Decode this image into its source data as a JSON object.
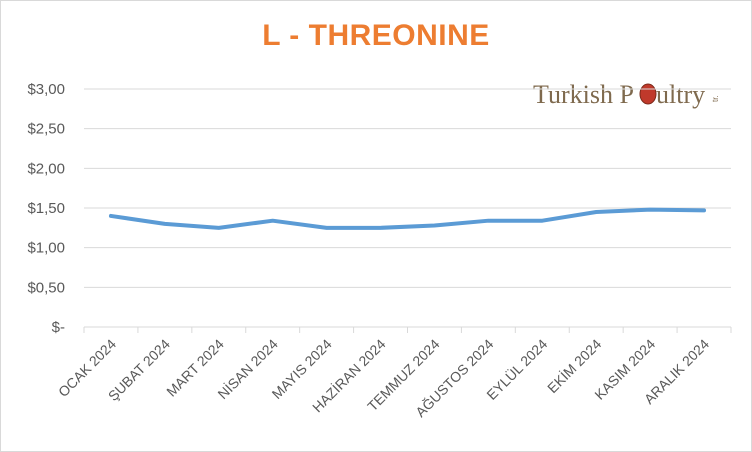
{
  "title": "L - THREONINE",
  "logo": {
    "text_main": "Turkish P",
    "text_tail": "ultry",
    "badge": "tr.",
    "icon": "egg-icon"
  },
  "colors": {
    "title": "#ed7d31",
    "line": "#5b9bd5",
    "grid": "#d9d9d9",
    "logo_text": "#7f6a4e",
    "logo_egg": "#c0392b"
  },
  "chart_data": {
    "type": "line",
    "categories": [
      "OCAK 2024",
      "ŞUBAT 2024",
      "MART 2024",
      "NİSAN 2024",
      "MAYIS 2024",
      "HAZİRAN 2024",
      "TEMMUZ 2024",
      "AĞUSTOS 2024",
      "EYLÜL 2024",
      "EKİM 2024",
      "KASIM 2024",
      "ARALIK 2024"
    ],
    "series": [
      {
        "values": [
          1.4,
          1.3,
          1.25,
          1.34,
          1.25,
          1.25,
          1.28,
          1.34,
          1.34,
          1.45,
          1.48,
          1.47
        ]
      }
    ],
    "ylim": [
      0,
      3
    ],
    "yticks": [
      0,
      0.5,
      1.0,
      1.5,
      2.0,
      2.5,
      3.0
    ],
    "ytick_labels": [
      "$-",
      "$0,50",
      "$1,00",
      "$1,50",
      "$2,00",
      "$2,50",
      "$3,00"
    ],
    "grid": true,
    "legend": "none"
  }
}
